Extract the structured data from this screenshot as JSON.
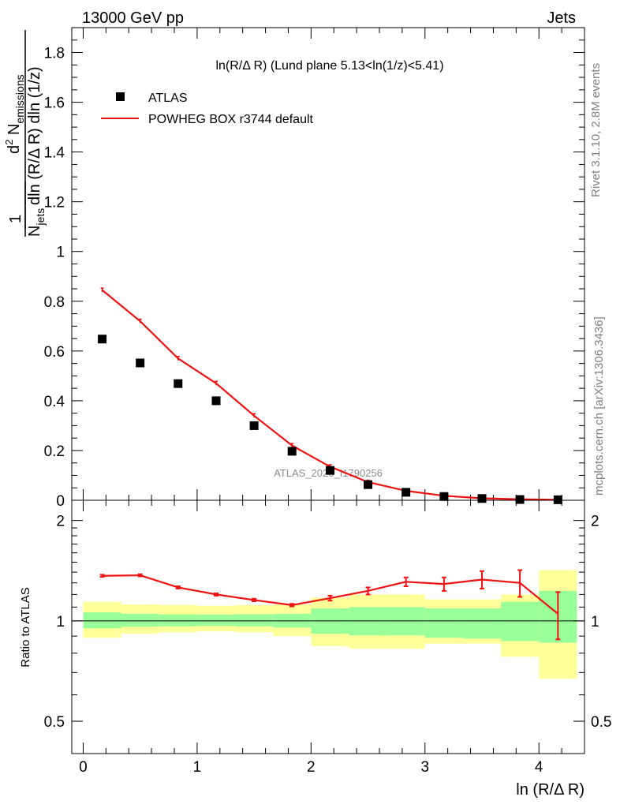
{
  "header": {
    "energy": "13000 GeV pp",
    "process": "Jets",
    "watermark_right_top": "Rivet 3.1.10,  2.8M events",
    "watermark_right_bottom": "mcplots.cern.ch [arXiv:1306.3436]",
    "analysis_id": "ATLAS_2020_I1790256"
  },
  "chart_data": [
    {
      "type": "scatter",
      "title": "ln(R/Δ R) (Lund plane 5.13<ln(1/z)<5.41)",
      "ylabel": "1/N_jets d² N_emissions / dln (R/Δ R) dln (1/z)",
      "xlabel": "ln (R/Δ R)",
      "xlim": [
        -0.1,
        4.4
      ],
      "ylim": [
        0,
        1.9
      ],
      "yticks": [
        "0",
        "0.2",
        "0.4",
        "0.6",
        "0.8",
        "1",
        "1.2",
        "1.4",
        "1.6",
        "1.8"
      ],
      "legend_position": "top-left",
      "legend": [
        "ATLAS",
        "POWHEG BOX r3744 default"
      ],
      "series": [
        {
          "name": "ATLAS",
          "style": "markers",
          "color": "#000000",
          "x": [
            0.167,
            0.5,
            0.833,
            1.167,
            1.5,
            1.833,
            2.167,
            2.5,
            2.833,
            3.167,
            3.5,
            3.833,
            4.167
          ],
          "y": [
            0.648,
            0.552,
            0.469,
            0.4,
            0.3,
            0.197,
            0.12,
            0.063,
            0.032,
            0.015,
            0.007,
            0.003,
            0.002
          ]
        },
        {
          "name": "POWHEG BOX r3744 default",
          "style": "line",
          "color": "#ee1111",
          "x": [
            0.167,
            0.5,
            0.833,
            1.167,
            1.5,
            1.833,
            2.167,
            2.5,
            2.833,
            3.167,
            3.5,
            3.833,
            4.167
          ],
          "y": [
            0.845,
            0.72,
            0.57,
            0.47,
            0.34,
            0.22,
            0.135,
            0.073,
            0.038,
            0.018,
            0.008,
            0.004,
            0.002
          ]
        }
      ]
    },
    {
      "type": "line",
      "ylabel": "Ratio to ATLAS",
      "xlabel": "ln (R/Δ R)",
      "xlim": [
        -0.1,
        4.4
      ],
      "ylim": [
        0.4,
        2.3
      ],
      "log_y": true,
      "xticks": [
        "0",
        "1",
        "2",
        "3",
        "4"
      ],
      "yticks": [
        "0.5",
        "1",
        "2"
      ],
      "bins": [
        {
          "lo": 0.0,
          "hi": 0.333,
          "stat_lo": 0.95,
          "stat_hi": 1.06,
          "tot_lo": 0.89,
          "tot_hi": 1.14
        },
        {
          "lo": 0.333,
          "hi": 0.667,
          "stat_lo": 0.96,
          "stat_hi": 1.05,
          "tot_lo": 0.915,
          "tot_hi": 1.12
        },
        {
          "lo": 0.667,
          "hi": 1.0,
          "stat_lo": 0.963,
          "stat_hi": 1.045,
          "tot_lo": 0.925,
          "tot_hi": 1.115
        },
        {
          "lo": 1.0,
          "hi": 1.333,
          "stat_lo": 0.966,
          "stat_hi": 1.044,
          "tot_lo": 0.93,
          "tot_hi": 1.11
        },
        {
          "lo": 1.333,
          "hi": 1.667,
          "stat_lo": 0.963,
          "stat_hi": 1.047,
          "tot_lo": 0.925,
          "tot_hi": 1.115
        },
        {
          "lo": 1.667,
          "hi": 2.0,
          "stat_lo": 0.955,
          "stat_hi": 1.05,
          "tot_lo": 0.9,
          "tot_hi": 1.12
        },
        {
          "lo": 2.0,
          "hi": 2.333,
          "stat_lo": 0.915,
          "stat_hi": 1.09,
          "tot_lo": 0.84,
          "tot_hi": 1.175
        },
        {
          "lo": 2.333,
          "hi": 2.667,
          "stat_lo": 0.905,
          "stat_hi": 1.1,
          "tot_lo": 0.825,
          "tot_hi": 1.2
        },
        {
          "lo": 2.667,
          "hi": 3.0,
          "stat_lo": 0.905,
          "stat_hi": 1.1,
          "tot_lo": 0.825,
          "tot_hi": 1.2
        },
        {
          "lo": 3.0,
          "hi": 3.333,
          "stat_lo": 0.89,
          "stat_hi": 1.09,
          "tot_lo": 0.855,
          "tot_hi": 1.16
        },
        {
          "lo": 3.333,
          "hi": 3.667,
          "stat_lo": 0.885,
          "stat_hi": 1.09,
          "tot_lo": 0.855,
          "tot_hi": 1.16
        },
        {
          "lo": 3.667,
          "hi": 4.0,
          "stat_lo": 0.87,
          "stat_hi": 1.14,
          "tot_lo": 0.78,
          "tot_hi": 1.2
        },
        {
          "lo": 4.0,
          "hi": 4.333,
          "stat_lo": 0.86,
          "stat_hi": 1.23,
          "tot_lo": 0.67,
          "tot_hi": 1.42
        }
      ],
      "series": [
        {
          "name": "POWHEG BOX r3744 default",
          "color": "#ee1111",
          "x": [
            0.167,
            0.5,
            0.833,
            1.167,
            1.5,
            1.833,
            2.167,
            2.5,
            2.833,
            3.167,
            3.5,
            3.833,
            4.167
          ],
          "y": [
            1.365,
            1.37,
            1.26,
            1.2,
            1.155,
            1.115,
            1.17,
            1.23,
            1.31,
            1.29,
            1.33,
            1.3,
            1.05
          ],
          "err": [
            0.01,
            0.01,
            0.01,
            0.01,
            0.01,
            0.01,
            0.02,
            0.03,
            0.04,
            0.06,
            0.08,
            0.12,
            0.17
          ]
        }
      ]
    }
  ],
  "colors": {
    "stat_band": "#99ff99",
    "total_band": "#ffff99",
    "prediction": "#ee1111",
    "data": "#000000",
    "watermark": "#808080"
  }
}
